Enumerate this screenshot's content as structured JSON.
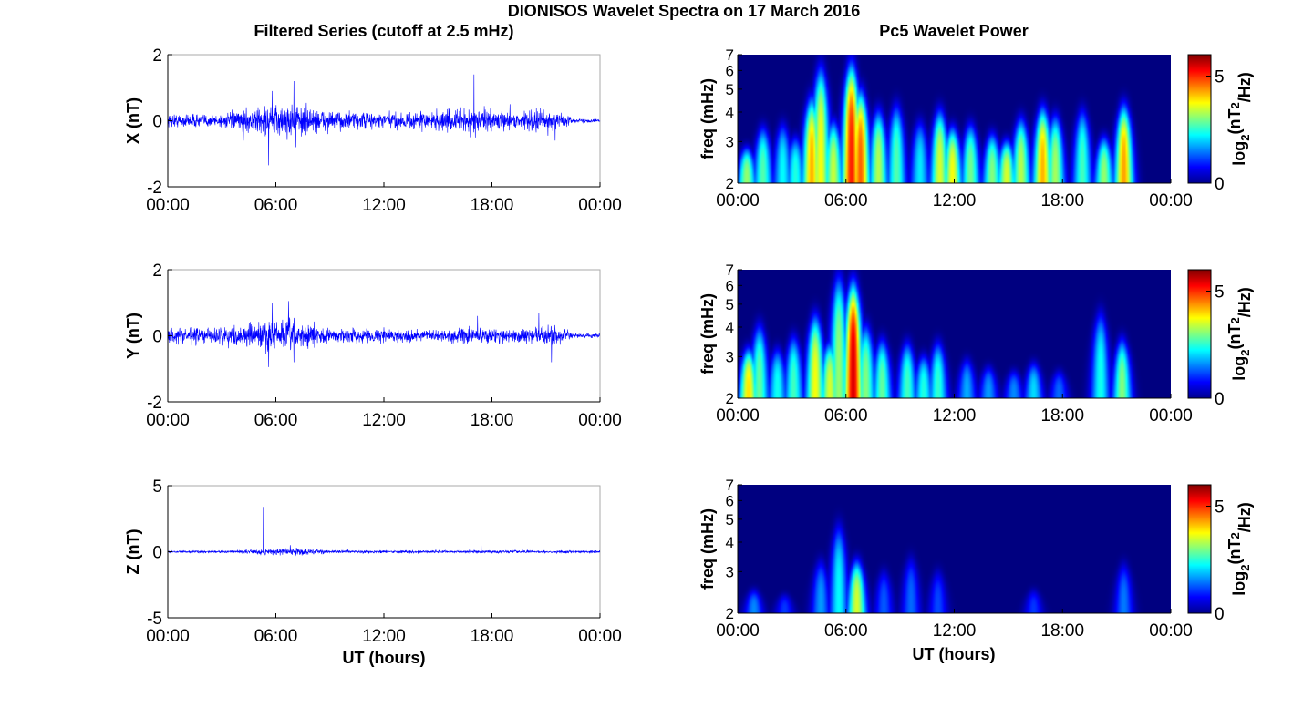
{
  "figure": {
    "title": "DIONISOS Wavelet Spectra on 17 March 2016",
    "left_title": "Filtered Series (cutoff at 2.5 mHz)",
    "right_title": "Pc5 Wavelet Power",
    "xlabel": "UT (hours)"
  },
  "colors": {
    "trace": "#0000ff",
    "axes": "#000000",
    "box": "#aaaaaa",
    "spec_bg": "#00008f"
  },
  "chart_data": [
    {
      "type": "line",
      "ylabel": "X (nT)",
      "x_ticks": [
        "00:00",
        "06:00",
        "12:00",
        "18:00",
        "00:00"
      ],
      "xlim": [
        0,
        24
      ],
      "ylim": [
        -2,
        2
      ],
      "y_ticks": [
        "2",
        "0",
        "-2"
      ],
      "noise_profile": [
        [
          0,
          0.25
        ],
        [
          3,
          0.25
        ],
        [
          4,
          0.35
        ],
        [
          5.5,
          0.55
        ],
        [
          7,
          0.65
        ],
        [
          9,
          0.35
        ],
        [
          12,
          0.3
        ],
        [
          14,
          0.35
        ],
        [
          17,
          0.45
        ],
        [
          19,
          0.3
        ],
        [
          21,
          0.45
        ],
        [
          22,
          0.3
        ],
        [
          22.5,
          0.08
        ],
        [
          24,
          0.06
        ]
      ],
      "spikes": [
        [
          4.2,
          -0.6
        ],
        [
          5.6,
          -1.35
        ],
        [
          5.8,
          0.9
        ],
        [
          7,
          1.2
        ],
        [
          7.1,
          -0.8
        ],
        [
          17,
          1.4
        ],
        [
          16.8,
          -0.5
        ],
        [
          21.5,
          -0.6
        ],
        [
          19,
          0.5
        ]
      ]
    },
    {
      "type": "line",
      "ylabel": "Y (nT)",
      "x_ticks": [
        "00:00",
        "06:00",
        "12:00",
        "18:00",
        "00:00"
      ],
      "xlim": [
        0,
        24
      ],
      "ylim": [
        -2,
        2
      ],
      "y_ticks": [
        "2",
        "0",
        "-2"
      ],
      "noise_profile": [
        [
          0,
          0.3
        ],
        [
          2,
          0.3
        ],
        [
          4,
          0.35
        ],
        [
          5.5,
          0.6
        ],
        [
          7,
          0.6
        ],
        [
          9,
          0.25
        ],
        [
          12,
          0.25
        ],
        [
          15,
          0.2
        ],
        [
          17,
          0.3
        ],
        [
          20,
          0.25
        ],
        [
          21,
          0.4
        ],
        [
          22,
          0.25
        ],
        [
          22.5,
          0.08
        ],
        [
          24,
          0.08
        ]
      ],
      "spikes": [
        [
          5.6,
          -0.95
        ],
        [
          5.8,
          1.0
        ],
        [
          6.7,
          1.05
        ],
        [
          7.0,
          -0.8
        ],
        [
          17.2,
          0.6
        ],
        [
          20.6,
          0.7
        ],
        [
          21.3,
          -0.8
        ]
      ]
    },
    {
      "type": "line",
      "ylabel": "Z (nT)",
      "x_ticks": [
        "00:00",
        "06:00",
        "12:00",
        "18:00",
        "00:00"
      ],
      "xlim": [
        0,
        24
      ],
      "ylim": [
        -5,
        5
      ],
      "y_ticks": [
        "5",
        "0",
        "-5"
      ],
      "noise_profile": [
        [
          0,
          0.1
        ],
        [
          4,
          0.12
        ],
        [
          5.5,
          0.3
        ],
        [
          7,
          0.35
        ],
        [
          9,
          0.15
        ],
        [
          16,
          0.12
        ],
        [
          18,
          0.15
        ],
        [
          22,
          0.12
        ],
        [
          24,
          0.1
        ]
      ],
      "spikes": [
        [
          5.3,
          3.4
        ],
        [
          5.35,
          -0.3
        ],
        [
          17.4,
          0.8
        ],
        [
          6.8,
          0.5
        ]
      ]
    },
    {
      "type": "heatmap",
      "ylabel": "freq (mHz)",
      "x_ticks": [
        "00:00",
        "06:00",
        "12:00",
        "18:00",
        "00:00"
      ],
      "xlim": [
        0,
        24
      ],
      "ylim": [
        2,
        7
      ],
      "y_scale": "log",
      "y_ticks": [
        "7",
        "6",
        "5",
        "4",
        "3",
        "2"
      ],
      "colorbar_label": "log2(nT^2/Hz)",
      "colorbar_ticks": [
        "5",
        "0"
      ],
      "clim": [
        0,
        6
      ],
      "bursts": [
        [
          0.5,
          2.8,
          3.2
        ],
        [
          1.4,
          3.4,
          2.8
        ],
        [
          2.5,
          3.5,
          2.3
        ],
        [
          3.2,
          3.1,
          2.5
        ],
        [
          4.1,
          4.5,
          4.3
        ],
        [
          4.6,
          6.0,
          3.8
        ],
        [
          5.3,
          3.6,
          3.5
        ],
        [
          6.3,
          6.2,
          5.2
        ],
        [
          6.8,
          4.8,
          4.8
        ],
        [
          7.8,
          4.0,
          3.4
        ],
        [
          8.8,
          4.2,
          2.8
        ],
        [
          10.1,
          3.6,
          2.2
        ],
        [
          11.2,
          4.0,
          3.6
        ],
        [
          11.9,
          3.4,
          3.8
        ],
        [
          12.9,
          3.5,
          3.0
        ],
        [
          14.1,
          3.2,
          3.1
        ],
        [
          14.9,
          3.0,
          3.6
        ],
        [
          15.7,
          3.7,
          3.4
        ],
        [
          16.9,
          4.1,
          4.3
        ],
        [
          17.6,
          3.8,
          3.3
        ],
        [
          19.1,
          4.0,
          2.7
        ],
        [
          20.3,
          3.1,
          3.2
        ],
        [
          21.4,
          4.2,
          4.4
        ]
      ]
    },
    {
      "type": "heatmap",
      "ylabel": "freq (mHz)",
      "x_ticks": [
        "00:00",
        "06:00",
        "12:00",
        "18:00",
        "00:00"
      ],
      "xlim": [
        0,
        24
      ],
      "ylim": [
        2,
        7
      ],
      "y_scale": "log",
      "y_ticks": [
        "7",
        "6",
        "5",
        "4",
        "3",
        "2"
      ],
      "colorbar_label": "log2(nT^2/Hz)",
      "colorbar_ticks": [
        "5",
        "0"
      ],
      "clim": [
        0,
        6
      ],
      "bursts": [
        [
          0.6,
          3.2,
          4.0
        ],
        [
          1.2,
          4.0,
          2.9
        ],
        [
          2.2,
          3.2,
          2.4
        ],
        [
          3.1,
          3.6,
          2.7
        ],
        [
          4.3,
          4.4,
          3.8
        ],
        [
          5.1,
          3.4,
          3.6
        ],
        [
          5.6,
          6.4,
          3.2
        ],
        [
          6.4,
          6.0,
          5.6
        ],
        [
          7.1,
          4.0,
          3.1
        ],
        [
          8.0,
          3.5,
          2.9
        ],
        [
          9.4,
          3.4,
          2.7
        ],
        [
          10.3,
          3.0,
          2.5
        ],
        [
          11.1,
          3.4,
          2.6
        ],
        [
          12.7,
          2.9,
          1.8
        ],
        [
          13.9,
          2.7,
          1.7
        ],
        [
          15.3,
          2.6,
          1.6
        ],
        [
          16.4,
          2.8,
          2.1
        ],
        [
          17.8,
          2.6,
          1.4
        ],
        [
          20.1,
          4.5,
          2.4
        ],
        [
          21.3,
          3.5,
          3.1
        ]
      ]
    },
    {
      "type": "heatmap",
      "ylabel": "freq (mHz)",
      "x_ticks": [
        "00:00",
        "06:00",
        "12:00",
        "18:00",
        "00:00"
      ],
      "xlim": [
        0,
        24
      ],
      "ylim": [
        2,
        7
      ],
      "y_scale": "log",
      "y_ticks": [
        "7",
        "6",
        "5",
        "4",
        "3",
        "2"
      ],
      "colorbar_label": "log2(nT^2/Hz)",
      "colorbar_ticks": [
        "5",
        "0"
      ],
      "clim": [
        0,
        6
      ],
      "bursts": [
        [
          0.9,
          2.5,
          1.6
        ],
        [
          2.6,
          2.4,
          1.1
        ],
        [
          4.6,
          3.3,
          1.7
        ],
        [
          5.6,
          4.6,
          2.3
        ],
        [
          6.6,
          3.3,
          3.6
        ],
        [
          8.1,
          3.0,
          1.3
        ],
        [
          9.6,
          3.4,
          1.4
        ],
        [
          11.1,
          3.0,
          1.2
        ],
        [
          16.4,
          2.5,
          1.1
        ],
        [
          21.4,
          3.2,
          1.5
        ]
      ]
    }
  ]
}
